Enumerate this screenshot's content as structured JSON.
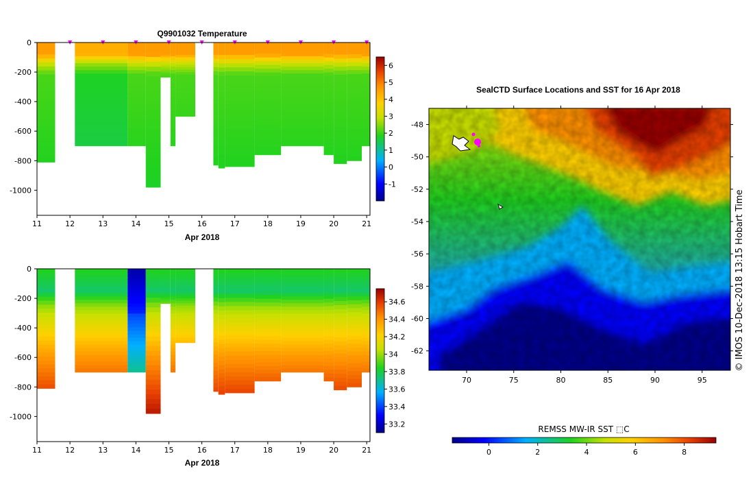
{
  "chart_data": [
    {
      "type": "heatmap",
      "title": "Q9901032  Temperature",
      "xlabel": "Apr 2018",
      "ylabel": "",
      "xlim": [
        11,
        21.1
      ],
      "ylim": [
        -1170,
        0
      ],
      "x_ticks": [
        "11",
        "12",
        "13",
        "14",
        "15",
        "16",
        "17",
        "18",
        "19",
        "20",
        "21"
      ],
      "y_ticks": [
        "0",
        "-200",
        "-400",
        "-600",
        "-800",
        "-1000"
      ],
      "profile_markers_x": [
        12.0,
        13.0,
        14.0,
        15.0,
        16.0,
        17.0,
        18.0,
        19.0,
        20.0,
        21.0
      ],
      "profiles": [
        {
          "start": 11.0,
          "end": 11.55,
          "depth": -810
        },
        {
          "start": 12.15,
          "end": 13.75,
          "depth": -700
        },
        {
          "start": 13.75,
          "end": 14.3,
          "depth": -700
        },
        {
          "start": 14.3,
          "end": 14.75,
          "depth": -980
        },
        {
          "start": 14.75,
          "end": 15.05,
          "depth": -235
        },
        {
          "start": 15.05,
          "end": 15.2,
          "depth": -700
        },
        {
          "start": 15.2,
          "end": 15.8,
          "depth": -500
        },
        {
          "start": 16.35,
          "end": 16.5,
          "depth": -830
        },
        {
          "start": 16.5,
          "end": 16.7,
          "depth": -850
        },
        {
          "start": 16.7,
          "end": 17.6,
          "depth": -840
        },
        {
          "start": 17.6,
          "end": 18.4,
          "depth": -760
        },
        {
          "start": 18.4,
          "end": 19.7,
          "depth": -700
        },
        {
          "start": 19.7,
          "end": 20.0,
          "depth": -760
        },
        {
          "start": 20.0,
          "end": 20.4,
          "depth": -820
        },
        {
          "start": 20.4,
          "end": 20.85,
          "depth": -800
        },
        {
          "start": 20.85,
          "end": 21.1,
          "depth": -700
        }
      ],
      "colorbar": {
        "min": -2,
        "max": 6.5,
        "ticks": [
          "6",
          "5",
          "4",
          "3",
          "2",
          "1",
          "0",
          "-1"
        ]
      }
    },
    {
      "type": "heatmap",
      "title": "",
      "xlabel": "Apr 2018",
      "ylabel": "",
      "xlim": [
        11,
        21.1
      ],
      "ylim": [
        -1170,
        0
      ],
      "x_ticks": [
        "11",
        "12",
        "13",
        "14",
        "15",
        "16",
        "17",
        "18",
        "19",
        "20",
        "21"
      ],
      "y_ticks": [
        "0",
        "-200",
        "-400",
        "-600",
        "-800",
        "-1000"
      ],
      "colorbar": {
        "min": 33.1,
        "max": 34.75,
        "ticks": [
          "34.6",
          "34.4",
          "34.2",
          "34",
          "33.8",
          "33.6",
          "33.4",
          "33.2"
        ]
      }
    },
    {
      "type": "heatmap",
      "title": "SealCTD Surface Locations and SST for 16 Apr 2018",
      "xlabel": "",
      "ylabel": "",
      "xlim": [
        66,
        98
      ],
      "ylim": [
        -63.2,
        -47
      ],
      "x_ticks": [
        "70",
        "75",
        "80",
        "85",
        "90",
        "95"
      ],
      "y_ticks": [
        "-48",
        "-50",
        "-52",
        "-54",
        "-56",
        "-58",
        "-60",
        "-62"
      ],
      "colorbar": {
        "title": "REMSS MW-IR SST ⬚C",
        "min": -1.5,
        "max": 9.3,
        "ticks": [
          "0",
          "2",
          "4",
          "6",
          "8"
        ]
      },
      "credit": "© IMOS 10-Dec-2018 13:15 Hobart Time"
    }
  ],
  "colors": {
    "ramp": [
      "#00008b",
      "#0000ff",
      "#00b0ff",
      "#1fd21f",
      "#c8e000",
      "#ffd000",
      "#ff9000",
      "#e84000",
      "#990000"
    ],
    "marker": "#ff00ff"
  }
}
